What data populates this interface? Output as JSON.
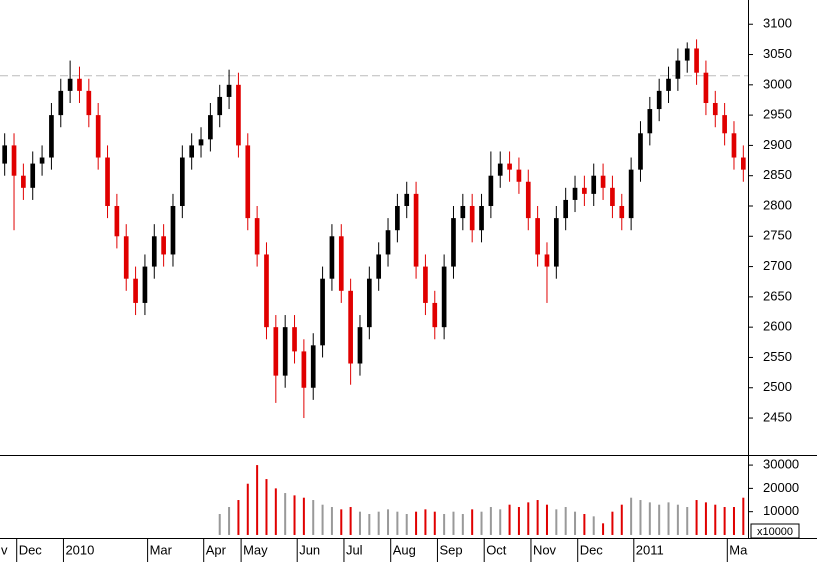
{
  "chart_data": {
    "type": "candlestick",
    "categories": [
      "v",
      null,
      "Dec",
      null,
      null,
      null,
      null,
      "2010",
      null,
      null,
      null,
      null,
      null,
      null,
      null,
      null,
      "Mar",
      null,
      null,
      null,
      null,
      null,
      "Apr",
      null,
      null,
      null,
      "May",
      null,
      null,
      null,
      null,
      null,
      "Jun",
      null,
      null,
      null,
      null,
      "Jul",
      null,
      null,
      null,
      null,
      "Aug",
      null,
      null,
      null,
      null,
      "Sep",
      null,
      null,
      null,
      null,
      "Oct",
      null,
      null,
      null,
      null,
      "Nov",
      null,
      null,
      null,
      null,
      "Dec",
      null,
      null,
      null,
      null,
      null,
      "2011",
      null,
      null,
      null,
      null,
      null,
      null,
      null,
      null,
      null,
      "Ma",
      null
    ],
    "open": [
      2870,
      2900,
      2850,
      2830,
      2870,
      2880,
      2950,
      2990,
      3010,
      2990,
      2950,
      2880,
      2800,
      2750,
      2680,
      2640,
      2700,
      2750,
      2720,
      2800,
      2880,
      2900,
      2910,
      2950,
      2980,
      3000,
      2900,
      2780,
      2720,
      2600,
      2520,
      2600,
      2560,
      2500,
      2570,
      2680,
      2750,
      2660,
      2540,
      2600,
      2680,
      2720,
      2760,
      2800,
      2820,
      2700,
      2640,
      2600,
      2700,
      2780,
      2800,
      2760,
      2800,
      2850,
      2870,
      2860,
      2840,
      2780,
      2720,
      2700,
      2780,
      2810,
      2830,
      2820,
      2850,
      2830,
      2800,
      2780,
      2860,
      2920,
      2960,
      2990,
      3010,
      3040,
      3060,
      3020,
      2970,
      2950,
      2920,
      2880
    ],
    "high": [
      2920,
      2920,
      2870,
      2890,
      2900,
      2970,
      3010,
      3040,
      3030,
      3010,
      2970,
      2900,
      2820,
      2770,
      2700,
      2720,
      2770,
      2770,
      2820,
      2900,
      2920,
      2930,
      2970,
      3000,
      3025,
      3020,
      2920,
      2800,
      2740,
      2620,
      2620,
      2620,
      2580,
      2590,
      2700,
      2770,
      2770,
      2680,
      2620,
      2700,
      2740,
      2780,
      2820,
      2840,
      2840,
      2720,
      2660,
      2720,
      2800,
      2820,
      2820,
      2820,
      2890,
      2890,
      2890,
      2880,
      2860,
      2800,
      2740,
      2800,
      2830,
      2850,
      2850,
      2870,
      2870,
      2850,
      2820,
      2880,
      2940,
      2980,
      3010,
      3030,
      3060,
      3070,
      3075,
      3040,
      2990,
      2970,
      2940,
      2900
    ],
    "low": [
      2850,
      2760,
      2810,
      2810,
      2850,
      2860,
      2930,
      2970,
      2970,
      2930,
      2860,
      2780,
      2730,
      2660,
      2620,
      2620,
      2680,
      2700,
      2700,
      2780,
      2860,
      2880,
      2890,
      2930,
      2960,
      2880,
      2760,
      2700,
      2580,
      2475,
      2500,
      2540,
      2450,
      2480,
      2550,
      2660,
      2640,
      2505,
      2520,
      2580,
      2660,
      2700,
      2740,
      2780,
      2680,
      2620,
      2580,
      2580,
      2680,
      2760,
      2740,
      2740,
      2780,
      2830,
      2840,
      2820,
      2760,
      2700,
      2640,
      2680,
      2760,
      2790,
      2800,
      2800,
      2810,
      2780,
      2760,
      2760,
      2840,
      2900,
      2940,
      2970,
      2990,
      3020,
      3000,
      2950,
      2930,
      2900,
      2860,
      2840
    ],
    "close": [
      2900,
      2850,
      2830,
      2870,
      2880,
      2950,
      2990,
      3010,
      2990,
      2950,
      2880,
      2800,
      2750,
      2680,
      2640,
      2700,
      2750,
      2720,
      2800,
      2880,
      2900,
      2910,
      2950,
      2980,
      3000,
      2900,
      2780,
      2720,
      2600,
      2520,
      2600,
      2560,
      2500,
      2570,
      2680,
      2750,
      2660,
      2540,
      2600,
      2680,
      2720,
      2760,
      2800,
      2820,
      2700,
      2640,
      2600,
      2700,
      2780,
      2800,
      2760,
      2800,
      2850,
      2870,
      2860,
      2840,
      2780,
      2720,
      2700,
      2780,
      2810,
      2830,
      2820,
      2850,
      2830,
      2800,
      2780,
      2860,
      2920,
      2960,
      2990,
      3010,
      3040,
      3060,
      3020,
      2970,
      2950,
      2920,
      2880,
      2860
    ],
    "volume": [
      null,
      null,
      null,
      null,
      null,
      null,
      null,
      null,
      null,
      null,
      null,
      null,
      null,
      null,
      null,
      null,
      null,
      null,
      null,
      null,
      null,
      null,
      null,
      9000,
      12000,
      15000,
      22000,
      30000,
      24000,
      20000,
      18000,
      17000,
      16000,
      15000,
      13000,
      12000,
      11000,
      12000,
      10000,
      9000,
      10000,
      11000,
      10000,
      9000,
      10000,
      11000,
      10000,
      9000,
      10000,
      9000,
      11000,
      10000,
      12000,
      11000,
      13000,
      12000,
      14000,
      15000,
      13000,
      11000,
      12000,
      10000,
      9000,
      8000,
      5000,
      10000,
      13000,
      16000,
      15000,
      14000,
      13000,
      14000,
      13000,
      12000,
      15000,
      14000,
      13000,
      12000,
      12000,
      16000
    ],
    "up_color": "#000000",
    "down_color": "#e00000",
    "reference_line": 3015,
    "ylim": [
      2389,
      3140
    ],
    "yticks": [
      2450,
      2500,
      2550,
      2600,
      2650,
      2700,
      2750,
      2800,
      2850,
      2900,
      2950,
      3000,
      3050,
      3100
    ],
    "volume_ylim": [
      -1300,
      33900
    ],
    "volume_yticks": [
      10000,
      20000,
      30000
    ],
    "volume_unit_label": "x10000"
  }
}
